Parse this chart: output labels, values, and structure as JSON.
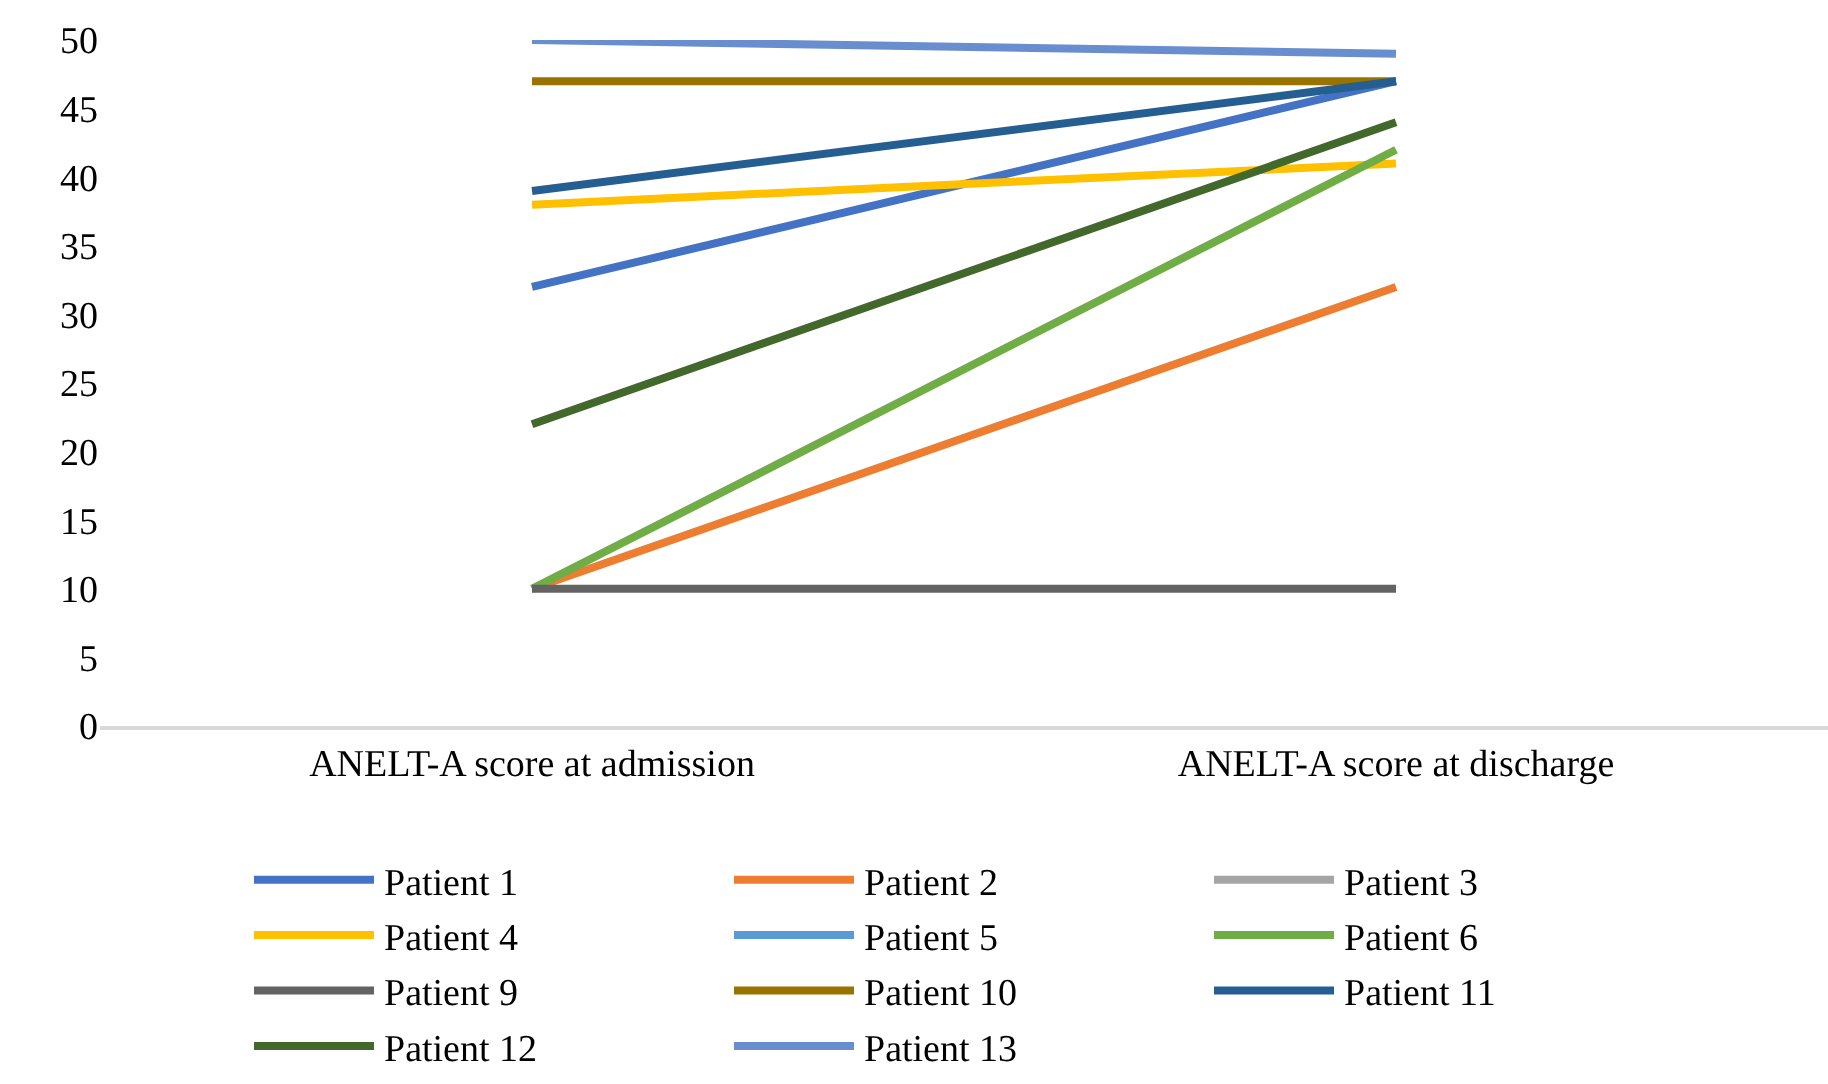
{
  "chart_data": {
    "type": "line",
    "categories": [
      "ANELT-A score at admission",
      "ANELT-A score at discharge"
    ],
    "ylim": [
      0,
      50
    ],
    "yticks": [
      0,
      5,
      10,
      15,
      20,
      25,
      30,
      35,
      40,
      45,
      50
    ],
    "grid": false,
    "legend": "bottom",
    "marker": "none",
    "line_style": "solid",
    "series": [
      {
        "name": "Patient 1",
        "color": "#4472c4",
        "values": [
          32,
          47
        ]
      },
      {
        "name": "Patient 2",
        "color": "#ed7d31",
        "values": [
          10,
          32
        ]
      },
      {
        "name": "Patient 3",
        "color": "#a5a5a5",
        "values": [
          null,
          null
        ]
      },
      {
        "name": "Patient 4",
        "color": "#ffc000",
        "values": [
          38,
          41
        ]
      },
      {
        "name": "Patient 5",
        "color": "#5b9bd5",
        "values": [
          null,
          null
        ]
      },
      {
        "name": "Patient 6",
        "color": "#70ad47",
        "values": [
          10,
          42
        ]
      },
      {
        "name": "Patient 9",
        "color": "#636363",
        "values": [
          10,
          10
        ]
      },
      {
        "name": "Patient 10",
        "color": "#997300",
        "values": [
          47,
          47
        ]
      },
      {
        "name": "Patient 11",
        "color": "#255e91",
        "values": [
          39,
          47
        ]
      },
      {
        "name": "Patient 12",
        "color": "#43682b",
        "values": [
          22,
          44
        ]
      },
      {
        "name": "Patient 13",
        "color": "#698ed0",
        "values": [
          50,
          49
        ]
      }
    ]
  }
}
